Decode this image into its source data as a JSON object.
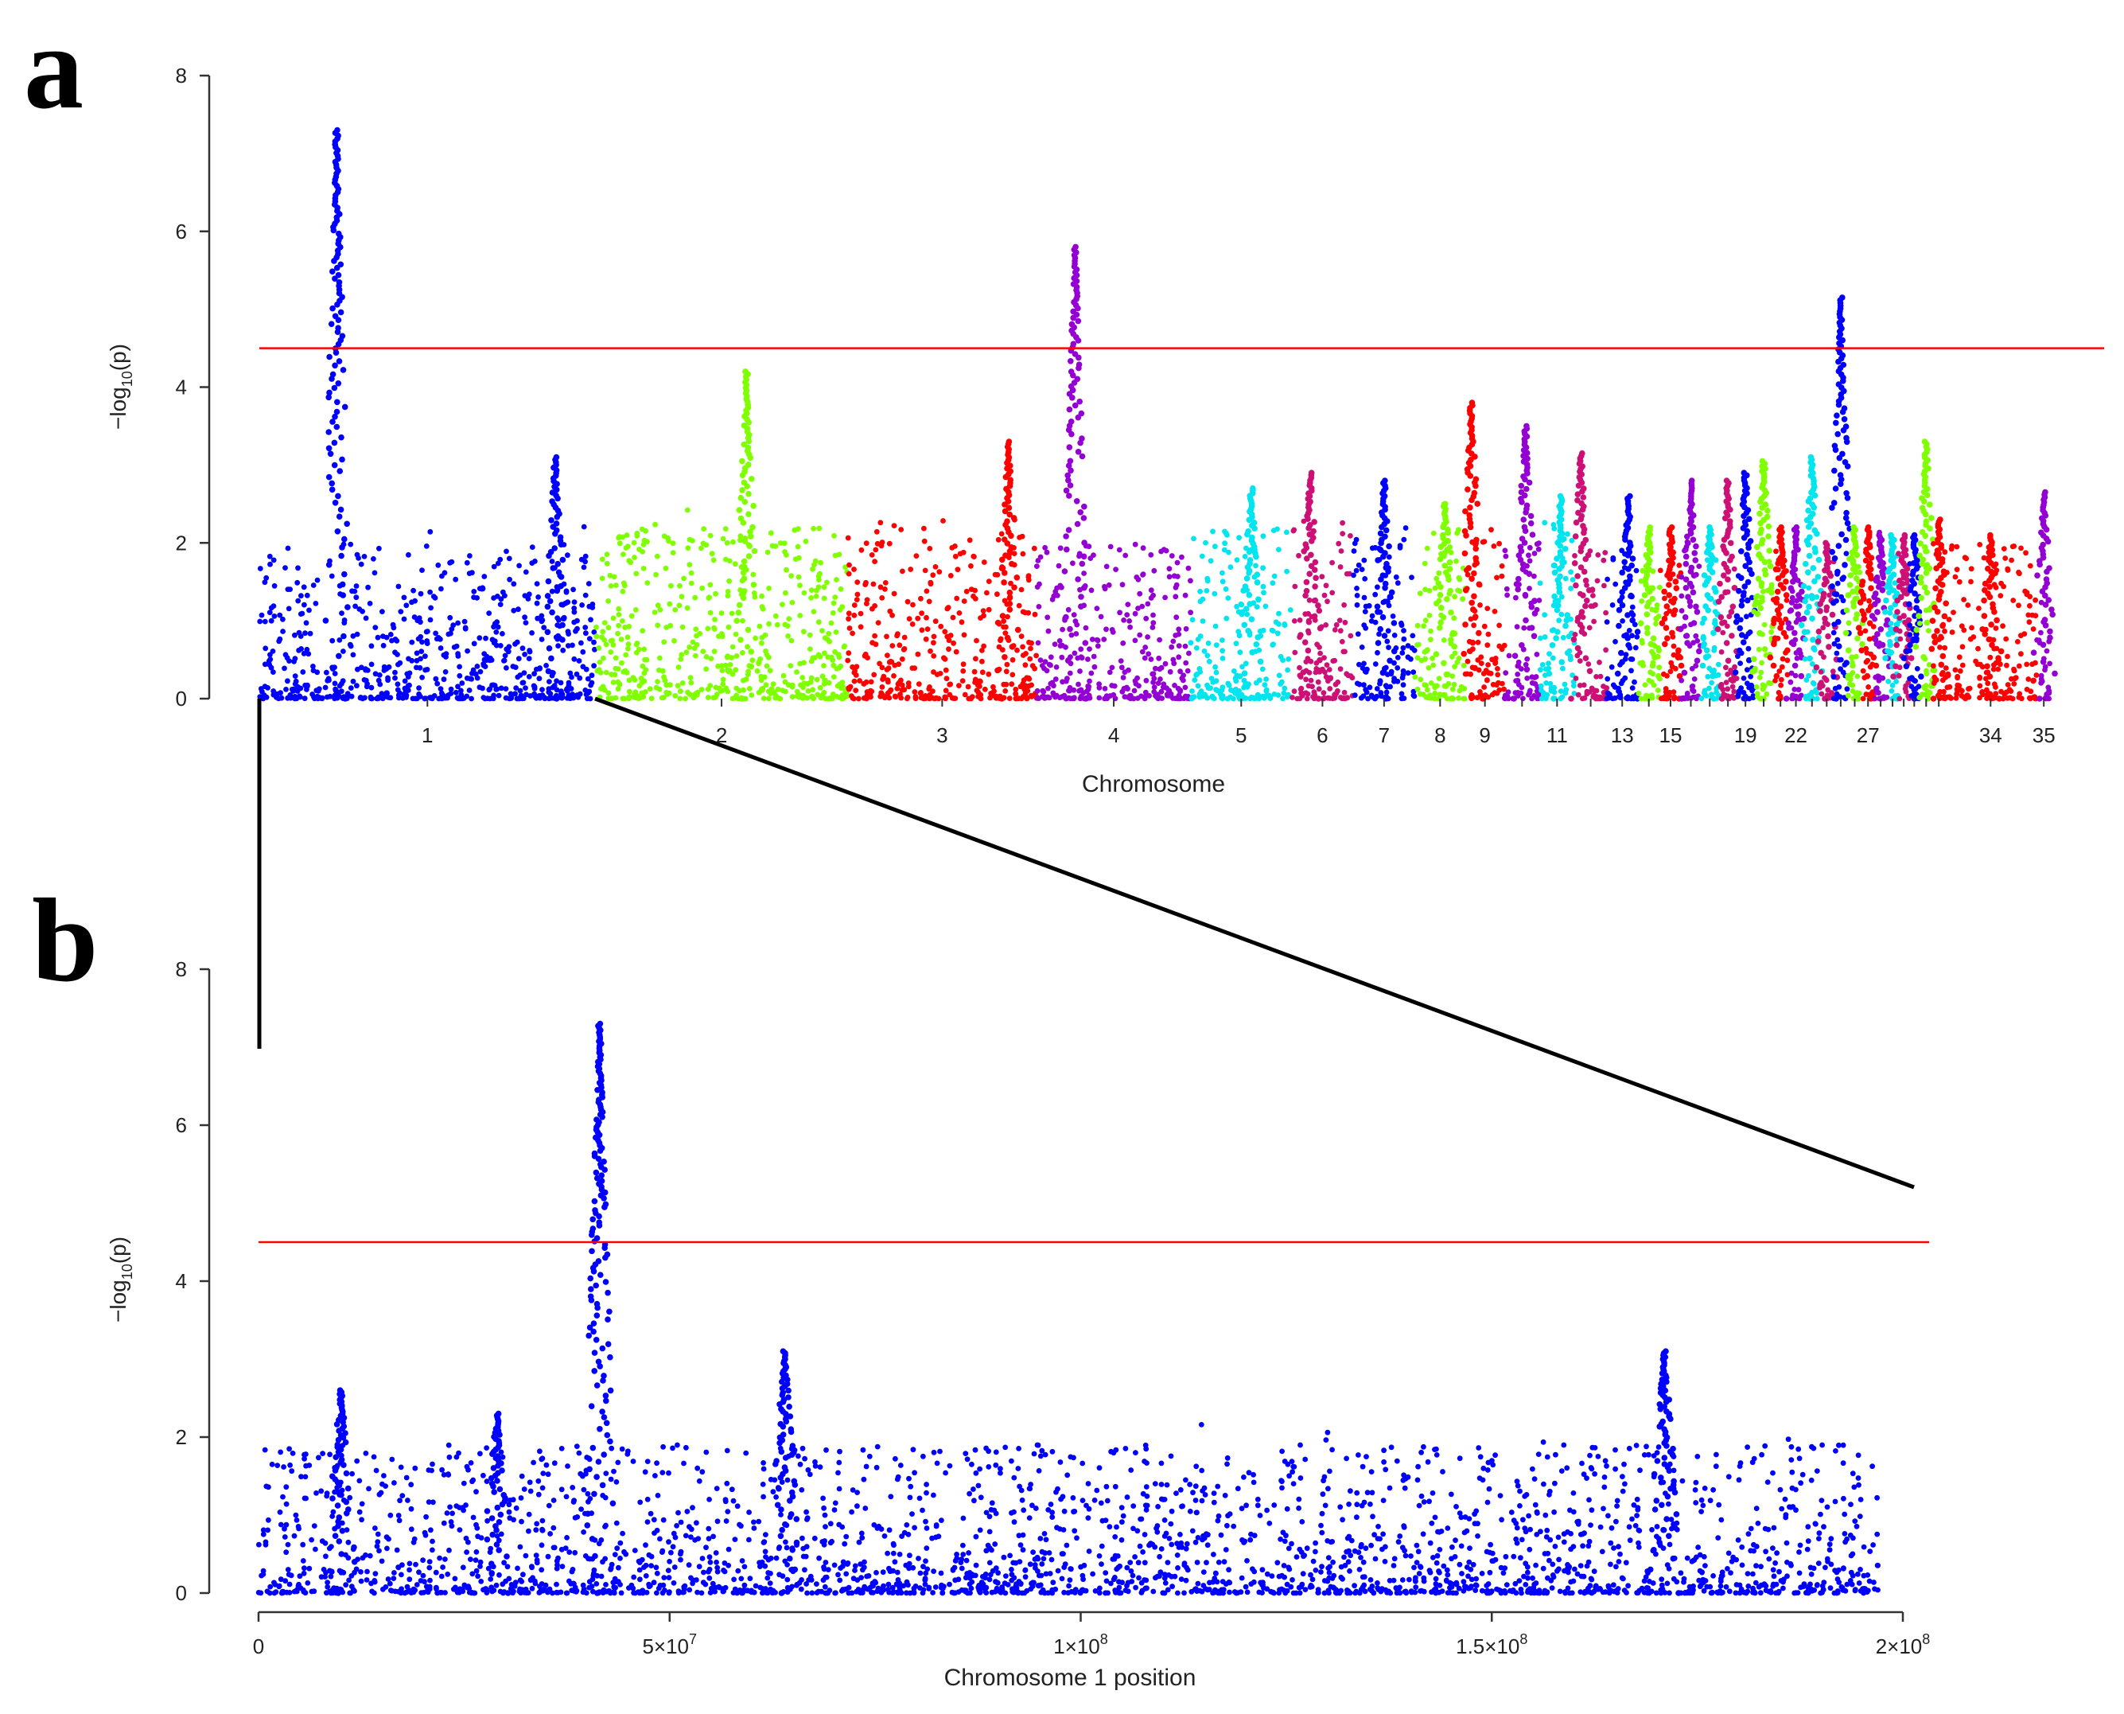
{
  "panels": {
    "a": {
      "letter": "a"
    },
    "b": {
      "letter": "b"
    }
  },
  "chart_data": [
    {
      "type": "scatter",
      "subtype": "manhattan",
      "panel": "a",
      "xlabel": "Chromosome",
      "ylabel_main": "−log",
      "ylabel_sub": "10",
      "ylabel_tail": "(p)",
      "ylim": [
        0,
        8
      ],
      "yticks": [
        "0",
        "2",
        "4",
        "6",
        "8"
      ],
      "threshold": 4.5,
      "threshold_color": "#ff0000",
      "colors": [
        "#0000ff",
        "#7fff00",
        "#ff0000",
        "#9400d3",
        "#00e5ee",
        "#cd1076"
      ],
      "chromosome_tick_labels": [
        "1",
        "2",
        "3",
        "4",
        "5",
        "6",
        "7",
        "8",
        "9",
        "11",
        "13",
        "15",
        "19",
        "22",
        "27",
        "34",
        "35"
      ],
      "chromosomes": [
        {
          "chr": "1",
          "color": "#0000ff",
          "base": 2.0,
          "peaks": [
            {
              "pos": 0.23,
              "max": 7.3
            },
            {
              "pos": 0.88,
              "max": 3.1
            }
          ]
        },
        {
          "chr": "2",
          "color": "#7fff00",
          "base": 2.2,
          "peaks": [
            {
              "pos": 0.6,
              "max": 4.2
            }
          ]
        },
        {
          "chr": "3",
          "color": "#ff0000",
          "base": 2.3,
          "peaks": [
            {
              "pos": 0.85,
              "max": 3.3
            }
          ]
        },
        {
          "chr": "4",
          "color": "#9400d3",
          "base": 2.0,
          "peaks": [
            {
              "pos": 0.25,
              "max": 5.8
            }
          ]
        },
        {
          "chr": "5",
          "color": "#00e5ee",
          "base": 2.2,
          "peaks": [
            {
              "pos": 0.6,
              "max": 2.7
            }
          ]
        },
        {
          "chr": "6",
          "color": "#cd1076",
          "base": 2.3,
          "peaks": [
            {
              "pos": 0.3,
              "max": 2.9
            }
          ]
        },
        {
          "chr": "7",
          "color": "#0000ff",
          "base": 2.2,
          "peaks": [
            {
              "pos": 0.5,
              "max": 2.8
            }
          ]
        },
        {
          "chr": "8",
          "color": "#7fff00",
          "base": 2.2,
          "peaks": [
            {
              "pos": 0.6,
              "max": 2.5
            }
          ]
        },
        {
          "chr": "9",
          "color": "#ff0000",
          "base": 2.1,
          "peaks": [
            {
              "pos": 0.15,
              "max": 3.8
            }
          ]
        },
        {
          "chr": "10",
          "color": "#9400d3",
          "base": 2.0,
          "peaks": [
            {
              "pos": 0.6,
              "max": 3.5
            }
          ]
        },
        {
          "chr": "11",
          "color": "#00e5ee",
          "base": 2.3,
          "peaks": [
            {
              "pos": 0.6,
              "max": 2.6
            }
          ]
        },
        {
          "chr": "12",
          "color": "#cd1076",
          "base": 1.9,
          "peaks": [
            {
              "pos": 0.2,
              "max": 3.15
            }
          ]
        },
        {
          "chr": "13",
          "color": "#0000ff",
          "base": 2.0,
          "peaks": [
            {
              "pos": 0.7,
              "max": 2.6
            }
          ]
        },
        {
          "chr": "14",
          "color": "#7fff00",
          "base": 2.0,
          "peaks": [
            {
              "pos": 0.5,
              "max": 2.2
            }
          ]
        },
        {
          "chr": "15",
          "color": "#ff0000",
          "base": 2.0,
          "peaks": [
            {
              "pos": 0.5,
              "max": 2.2
            }
          ]
        },
        {
          "chr": "16",
          "color": "#9400d3",
          "base": 2.2,
          "peaks": [
            {
              "pos": 0.5,
              "max": 2.8
            }
          ]
        },
        {
          "chr": "17",
          "color": "#00e5ee",
          "base": 2.0,
          "peaks": [
            {
              "pos": 0.5,
              "max": 2.2
            }
          ]
        },
        {
          "chr": "18",
          "color": "#cd1076",
          "base": 2.0,
          "peaks": [
            {
              "pos": 0.5,
              "max": 2.8
            }
          ]
        },
        {
          "chr": "19",
          "color": "#0000ff",
          "base": 2.0,
          "peaks": [
            {
              "pos": 0.5,
              "max": 2.9
            }
          ]
        },
        {
          "chr": "20",
          "color": "#7fff00",
          "base": 2.0,
          "peaks": [
            {
              "pos": 0.5,
              "max": 3.05
            }
          ]
        },
        {
          "chr": "21",
          "color": "#ff0000",
          "base": 1.9,
          "peaks": [
            {
              "pos": 0.5,
              "max": 2.2
            }
          ]
        },
        {
          "chr": "22",
          "color": "#9400d3",
          "base": 1.8,
          "peaks": [
            {
              "pos": 0.5,
              "max": 2.2
            }
          ]
        },
        {
          "chr": "23",
          "color": "#00e5ee",
          "base": 2.0,
          "peaks": [
            {
              "pos": 0.5,
              "max": 3.1
            }
          ]
        },
        {
          "chr": "24",
          "color": "#cd1076",
          "base": 1.8,
          "peaks": [
            {
              "pos": 0.5,
              "max": 2.0
            }
          ]
        },
        {
          "chr": "25",
          "color": "#0000ff",
          "base": 2.0,
          "peaks": [
            {
              "pos": 0.5,
              "max": 5.15
            }
          ]
        },
        {
          "chr": "26",
          "color": "#7fff00",
          "base": 1.9,
          "peaks": [
            {
              "pos": 0.5,
              "max": 2.2
            }
          ]
        },
        {
          "chr": "27",
          "color": "#ff0000",
          "base": 1.8,
          "peaks": [
            {
              "pos": 0.5,
              "max": 2.2
            }
          ]
        },
        {
          "chr": "28",
          "color": "#9400d3",
          "base": 2.0,
          "peaks": [
            {
              "pos": 0.5,
              "max": 2.1
            }
          ]
        },
        {
          "chr": "29",
          "color": "#00e5ee",
          "base": 2.0,
          "peaks": [
            {
              "pos": 0.5,
              "max": 2.1
            }
          ]
        },
        {
          "chr": "30",
          "color": "#cd1076",
          "base": 2.0,
          "peaks": [
            {
              "pos": 0.5,
              "max": 2.1
            }
          ]
        },
        {
          "chr": "31",
          "color": "#0000ff",
          "base": 2.0,
          "peaks": [
            {
              "pos": 0.5,
              "max": 2.1
            }
          ]
        },
        {
          "chr": "32",
          "color": "#7fff00",
          "base": 2.0,
          "peaks": [
            {
              "pos": 0.5,
              "max": 3.3
            }
          ]
        },
        {
          "chr": "33",
          "color": "#ff0000",
          "base": 2.0,
          "peaks": [
            {
              "pos": 0.5,
              "max": 2.3
            }
          ]
        },
        {
          "chr": "34",
          "color": "#ff0000",
          "base": 2.0,
          "peaks": [
            {
              "pos": 0.5,
              "max": 2.1
            }
          ]
        },
        {
          "chr": "35",
          "color": "#9400d3",
          "base": 1.2,
          "peaks": [
            {
              "pos": 0.5,
              "max": 2.65
            }
          ]
        }
      ]
    },
    {
      "type": "scatter",
      "subtype": "manhattan",
      "panel": "b",
      "xlabel": "Chromosome 1 position",
      "ylabel_main": "−log",
      "ylabel_sub": "10",
      "ylabel_tail": "(p)",
      "xlim": [
        0,
        200000000
      ],
      "xticks": [
        {
          "value": 0,
          "label": "0"
        },
        {
          "value": 50000000,
          "label": "5×10",
          "exp": "7"
        },
        {
          "value": 100000000,
          "label": "1×10",
          "exp": "8"
        },
        {
          "value": 150000000,
          "label": "1.5×10",
          "exp": "8"
        },
        {
          "value": 200000000,
          "label": "2×10",
          "exp": "8"
        }
      ],
      "ylim": [
        0,
        8
      ],
      "yticks": [
        "0",
        "2",
        "4",
        "6",
        "8"
      ],
      "threshold": 4.5,
      "threshold_color": "#ff0000",
      "color": "#0000ff",
      "chr_length": 197000000,
      "peaks": [
        {
          "pos": 41500000,
          "max": 7.3
        },
        {
          "pos": 64000000,
          "max": 3.1
        },
        {
          "pos": 171000000,
          "max": 3.1
        },
        {
          "pos": 10000000,
          "max": 2.6
        },
        {
          "pos": 29000000,
          "max": 2.3
        }
      ]
    }
  ]
}
